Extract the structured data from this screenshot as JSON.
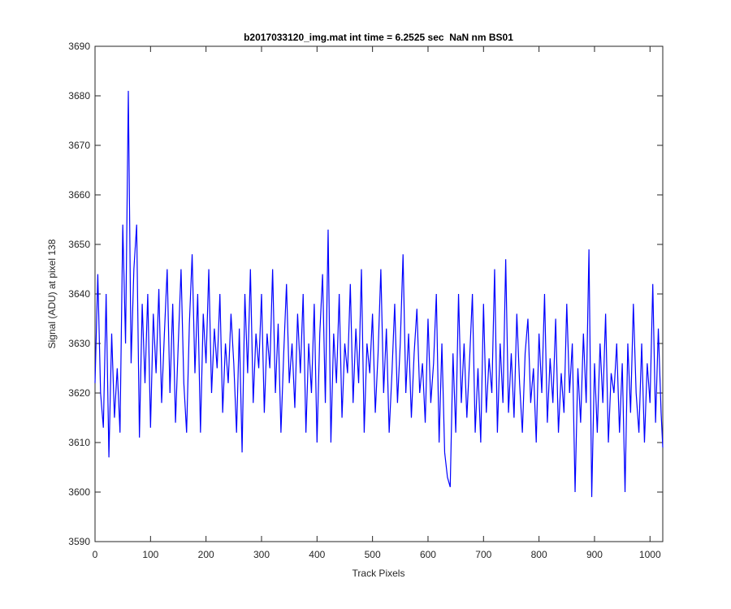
{
  "chart_data": {
    "type": "line",
    "title": "b2017033120_img.mat int time = 6.2525 sec  NaN nm BS01",
    "xlabel": "Track Pixels",
    "ylabel": "Signal (ADU) at pixel 138",
    "color": "#0000ff",
    "xlim": [
      0,
      1023
    ],
    "ylim": [
      3590,
      3690
    ],
    "xticks": [
      0,
      100,
      200,
      300,
      400,
      500,
      600,
      700,
      800,
      900,
      1000
    ],
    "yticks": [
      3590,
      3600,
      3610,
      3620,
      3630,
      3640,
      3650,
      3660,
      3670,
      3680,
      3690
    ],
    "x": [
      0,
      5,
      10,
      15,
      20,
      25,
      30,
      35,
      40,
      45,
      50,
      55,
      60,
      65,
      70,
      75,
      80,
      85,
      90,
      95,
      100,
      105,
      110,
      115,
      120,
      125,
      130,
      135,
      140,
      145,
      150,
      155,
      160,
      165,
      170,
      175,
      180,
      185,
      190,
      195,
      200,
      205,
      210,
      215,
      220,
      225,
      230,
      235,
      240,
      245,
      250,
      255,
      260,
      265,
      270,
      275,
      280,
      285,
      290,
      295,
      300,
      305,
      310,
      315,
      320,
      325,
      330,
      335,
      340,
      345,
      350,
      355,
      360,
      365,
      370,
      375,
      380,
      385,
      390,
      395,
      400,
      405,
      410,
      415,
      420,
      425,
      430,
      435,
      440,
      445,
      450,
      455,
      460,
      465,
      470,
      475,
      480,
      485,
      490,
      495,
      500,
      505,
      510,
      515,
      520,
      525,
      530,
      535,
      540,
      545,
      550,
      555,
      560,
      565,
      570,
      575,
      580,
      585,
      590,
      595,
      600,
      605,
      610,
      615,
      620,
      625,
      630,
      635,
      640,
      645,
      650,
      655,
      660,
      665,
      670,
      675,
      680,
      685,
      690,
      695,
      700,
      705,
      710,
      715,
      720,
      725,
      730,
      735,
      740,
      745,
      750,
      755,
      760,
      765,
      770,
      775,
      780,
      785,
      790,
      795,
      800,
      805,
      810,
      815,
      820,
      825,
      830,
      835,
      840,
      845,
      850,
      855,
      860,
      865,
      870,
      875,
      880,
      885,
      890,
      895,
      900,
      905,
      910,
      915,
      920,
      925,
      930,
      935,
      940,
      945,
      950,
      955,
      960,
      965,
      970,
      975,
      980,
      985,
      990,
      995,
      1000,
      1005,
      1010,
      1015,
      1020,
      1023
    ],
    "values": [
      3622,
      3644,
      3620,
      3613,
      3640,
      3607,
      3632,
      3615,
      3625,
      3612,
      3654,
      3630,
      3681,
      3626,
      3645,
      3654,
      3611,
      3638,
      3622,
      3640,
      3613,
      3636,
      3624,
      3641,
      3618,
      3632,
      3645,
      3620,
      3638,
      3614,
      3630,
      3645,
      3622,
      3612,
      3634,
      3648,
      3624,
      3640,
      3612,
      3636,
      3626,
      3645,
      3620,
      3633,
      3625,
      3640,
      3616,
      3630,
      3622,
      3636,
      3626,
      3612,
      3633,
      3608,
      3640,
      3624,
      3645,
      3618,
      3632,
      3625,
      3640,
      3616,
      3632,
      3625,
      3645,
      3620,
      3634,
      3612,
      3628,
      3642,
      3622,
      3630,
      3617,
      3636,
      3624,
      3640,
      3612,
      3630,
      3620,
      3638,
      3610,
      3632,
      3644,
      3618,
      3653,
      3610,
      3632,
      3622,
      3640,
      3615,
      3630,
      3624,
      3642,
      3618,
      3633,
      3622,
      3645,
      3612,
      3630,
      3624,
      3636,
      3616,
      3628,
      3645,
      3620,
      3633,
      3612,
      3624,
      3638,
      3618,
      3630,
      3648,
      3620,
      3632,
      3615,
      3628,
      3637,
      3620,
      3626,
      3614,
      3635,
      3618,
      3626,
      3640,
      3610,
      3630,
      3608,
      3603,
      3601,
      3628,
      3612,
      3640,
      3618,
      3630,
      3615,
      3627,
      3640,
      3612,
      3625,
      3610,
      3638,
      3616,
      3627,
      3620,
      3645,
      3612,
      3630,
      3618,
      3647,
      3616,
      3628,
      3615,
      3636,
      3622,
      3612,
      3628,
      3635,
      3618,
      3625,
      3610,
      3632,
      3620,
      3640,
      3614,
      3627,
      3618,
      3635,
      3612,
      3624,
      3616,
      3638,
      3620,
      3630,
      3600,
      3625,
      3614,
      3632,
      3618,
      3649,
      3599,
      3626,
      3612,
      3630,
      3618,
      3636,
      3610,
      3624,
      3620,
      3630,
      3612,
      3626,
      3600,
      3630,
      3616,
      3638,
      3620,
      3612,
      3630,
      3610,
      3626,
      3618,
      3642,
      3614,
      3633,
      3616,
      3609
    ]
  }
}
